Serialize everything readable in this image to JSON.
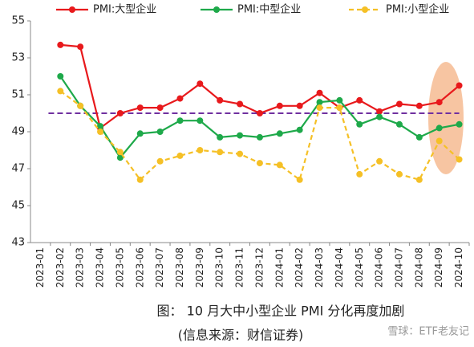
{
  "chart_data": {
    "type": "line",
    "categories": [
      "2023-01",
      "2023-02",
      "2023-03",
      "2023-04",
      "2023-05",
      "2023-06",
      "2023-07",
      "2023-08",
      "2023-09",
      "2023-10",
      "2023-11",
      "2023-12",
      "2024-01",
      "2024-02",
      "2024-03",
      "2024-04",
      "2024-05",
      "2024-06",
      "2024-07",
      "2024-08",
      "2024-09",
      "2024-10"
    ],
    "series": [
      {
        "name": "PMI:大型企业",
        "color": "#e8191c",
        "dashed": false,
        "values": [
          null,
          53.7,
          53.6,
          49.2,
          50.0,
          50.3,
          50.3,
          50.8,
          51.6,
          50.7,
          50.5,
          50.0,
          50.4,
          50.4,
          51.1,
          50.3,
          50.7,
          50.1,
          50.5,
          50.4,
          50.6,
          51.5
        ]
      },
      {
        "name": "PMI:中型企业",
        "color": "#1ea94a",
        "dashed": false,
        "values": [
          null,
          52.0,
          50.4,
          49.3,
          47.6,
          48.9,
          49.0,
          49.6,
          49.6,
          48.7,
          48.8,
          48.7,
          48.9,
          49.1,
          50.6,
          50.7,
          49.4,
          49.8,
          49.4,
          48.7,
          49.2,
          49.4
        ]
      },
      {
        "name": "PMI:小型企业",
        "color": "#f5c026",
        "dashed": true,
        "values": [
          null,
          51.2,
          50.4,
          49.0,
          47.9,
          46.4,
          47.4,
          47.7,
          48.0,
          47.9,
          47.8,
          47.3,
          47.2,
          46.4,
          50.3,
          50.3,
          46.7,
          47.4,
          46.7,
          46.4,
          48.5,
          47.5
        ]
      }
    ],
    "reference_line": 50,
    "reference_color": "#7030a0",
    "ylim": [
      43,
      55
    ],
    "yticks": [
      43,
      45,
      47,
      49,
      51,
      53,
      55
    ],
    "caption": "图： 10 月大中小型企业 PMI 分化再度加剧",
    "source": "(信息来源：财信证券)",
    "watermark": "雪球：ETF老友记"
  }
}
